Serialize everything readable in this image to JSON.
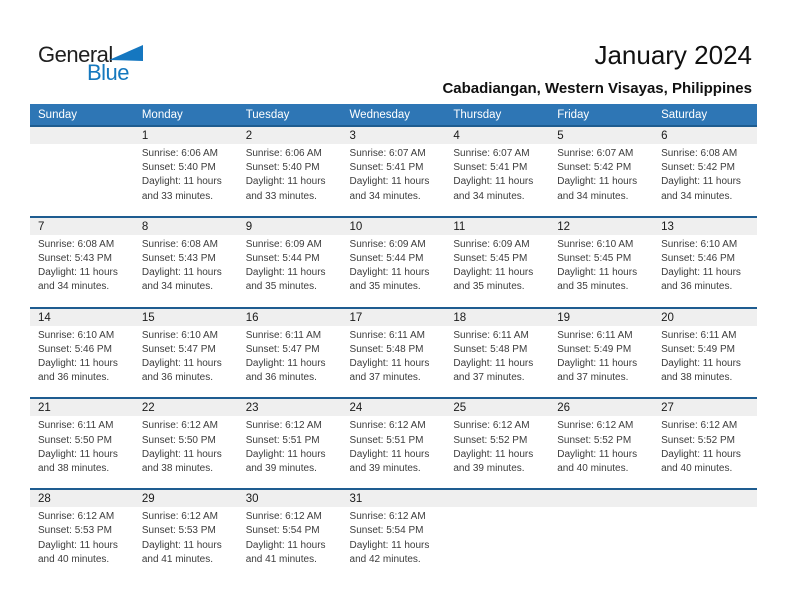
{
  "logo": {
    "part1": "General",
    "part2": "Blue"
  },
  "header": {
    "month_title": "January 2024",
    "location": "Cabadiangan, Western Visayas, Philippines"
  },
  "colors": {
    "header_blue": "#2E76B5",
    "week_border_blue": "#1E5C90",
    "day_band_gray": "#EFEFEF",
    "logo_blue": "#1578BE"
  },
  "weekdays": [
    "Sunday",
    "Monday",
    "Tuesday",
    "Wednesday",
    "Thursday",
    "Friday",
    "Saturday"
  ],
  "weeks": [
    [
      {
        "day": "",
        "lines": []
      },
      {
        "day": "1",
        "lines": [
          "Sunrise: 6:06 AM",
          "Sunset: 5:40 PM",
          "Daylight: 11 hours",
          "and 33 minutes."
        ]
      },
      {
        "day": "2",
        "lines": [
          "Sunrise: 6:06 AM",
          "Sunset: 5:40 PM",
          "Daylight: 11 hours",
          "and 33 minutes."
        ]
      },
      {
        "day": "3",
        "lines": [
          "Sunrise: 6:07 AM",
          "Sunset: 5:41 PM",
          "Daylight: 11 hours",
          "and 34 minutes."
        ]
      },
      {
        "day": "4",
        "lines": [
          "Sunrise: 6:07 AM",
          "Sunset: 5:41 PM",
          "Daylight: 11 hours",
          "and 34 minutes."
        ]
      },
      {
        "day": "5",
        "lines": [
          "Sunrise: 6:07 AM",
          "Sunset: 5:42 PM",
          "Daylight: 11 hours",
          "and 34 minutes."
        ]
      },
      {
        "day": "6",
        "lines": [
          "Sunrise: 6:08 AM",
          "Sunset: 5:42 PM",
          "Daylight: 11 hours",
          "and 34 minutes."
        ]
      }
    ],
    [
      {
        "day": "7",
        "lines": [
          "Sunrise: 6:08 AM",
          "Sunset: 5:43 PM",
          "Daylight: 11 hours",
          "and 34 minutes."
        ]
      },
      {
        "day": "8",
        "lines": [
          "Sunrise: 6:08 AM",
          "Sunset: 5:43 PM",
          "Daylight: 11 hours",
          "and 34 minutes."
        ]
      },
      {
        "day": "9",
        "lines": [
          "Sunrise: 6:09 AM",
          "Sunset: 5:44 PM",
          "Daylight: 11 hours",
          "and 35 minutes."
        ]
      },
      {
        "day": "10",
        "lines": [
          "Sunrise: 6:09 AM",
          "Sunset: 5:44 PM",
          "Daylight: 11 hours",
          "and 35 minutes."
        ]
      },
      {
        "day": "11",
        "lines": [
          "Sunrise: 6:09 AM",
          "Sunset: 5:45 PM",
          "Daylight: 11 hours",
          "and 35 minutes."
        ]
      },
      {
        "day": "12",
        "lines": [
          "Sunrise: 6:10 AM",
          "Sunset: 5:45 PM",
          "Daylight: 11 hours",
          "and 35 minutes."
        ]
      },
      {
        "day": "13",
        "lines": [
          "Sunrise: 6:10 AM",
          "Sunset: 5:46 PM",
          "Daylight: 11 hours",
          "and 36 minutes."
        ]
      }
    ],
    [
      {
        "day": "14",
        "lines": [
          "Sunrise: 6:10 AM",
          "Sunset: 5:46 PM",
          "Daylight: 11 hours",
          "and 36 minutes."
        ]
      },
      {
        "day": "15",
        "lines": [
          "Sunrise: 6:10 AM",
          "Sunset: 5:47 PM",
          "Daylight: 11 hours",
          "and 36 minutes."
        ]
      },
      {
        "day": "16",
        "lines": [
          "Sunrise: 6:11 AM",
          "Sunset: 5:47 PM",
          "Daylight: 11 hours",
          "and 36 minutes."
        ]
      },
      {
        "day": "17",
        "lines": [
          "Sunrise: 6:11 AM",
          "Sunset: 5:48 PM",
          "Daylight: 11 hours",
          "and 37 minutes."
        ]
      },
      {
        "day": "18",
        "lines": [
          "Sunrise: 6:11 AM",
          "Sunset: 5:48 PM",
          "Daylight: 11 hours",
          "and 37 minutes."
        ]
      },
      {
        "day": "19",
        "lines": [
          "Sunrise: 6:11 AM",
          "Sunset: 5:49 PM",
          "Daylight: 11 hours",
          "and 37 minutes."
        ]
      },
      {
        "day": "20",
        "lines": [
          "Sunrise: 6:11 AM",
          "Sunset: 5:49 PM",
          "Daylight: 11 hours",
          "and 38 minutes."
        ]
      }
    ],
    [
      {
        "day": "21",
        "lines": [
          "Sunrise: 6:11 AM",
          "Sunset: 5:50 PM",
          "Daylight: 11 hours",
          "and 38 minutes."
        ]
      },
      {
        "day": "22",
        "lines": [
          "Sunrise: 6:12 AM",
          "Sunset: 5:50 PM",
          "Daylight: 11 hours",
          "and 38 minutes."
        ]
      },
      {
        "day": "23",
        "lines": [
          "Sunrise: 6:12 AM",
          "Sunset: 5:51 PM",
          "Daylight: 11 hours",
          "and 39 minutes."
        ]
      },
      {
        "day": "24",
        "lines": [
          "Sunrise: 6:12 AM",
          "Sunset: 5:51 PM",
          "Daylight: 11 hours",
          "and 39 minutes."
        ]
      },
      {
        "day": "25",
        "lines": [
          "Sunrise: 6:12 AM",
          "Sunset: 5:52 PM",
          "Daylight: 11 hours",
          "and 39 minutes."
        ]
      },
      {
        "day": "26",
        "lines": [
          "Sunrise: 6:12 AM",
          "Sunset: 5:52 PM",
          "Daylight: 11 hours",
          "and 40 minutes."
        ]
      },
      {
        "day": "27",
        "lines": [
          "Sunrise: 6:12 AM",
          "Sunset: 5:52 PM",
          "Daylight: 11 hours",
          "and 40 minutes."
        ]
      }
    ],
    [
      {
        "day": "28",
        "lines": [
          "Sunrise: 6:12 AM",
          "Sunset: 5:53 PM",
          "Daylight: 11 hours",
          "and 40 minutes."
        ]
      },
      {
        "day": "29",
        "lines": [
          "Sunrise: 6:12 AM",
          "Sunset: 5:53 PM",
          "Daylight: 11 hours",
          "and 41 minutes."
        ]
      },
      {
        "day": "30",
        "lines": [
          "Sunrise: 6:12 AM",
          "Sunset: 5:54 PM",
          "Daylight: 11 hours",
          "and 41 minutes."
        ]
      },
      {
        "day": "31",
        "lines": [
          "Sunrise: 6:12 AM",
          "Sunset: 5:54 PM",
          "Daylight: 11 hours",
          "and 42 minutes."
        ]
      },
      {
        "day": "",
        "lines": []
      },
      {
        "day": "",
        "lines": []
      },
      {
        "day": "",
        "lines": []
      }
    ]
  ]
}
